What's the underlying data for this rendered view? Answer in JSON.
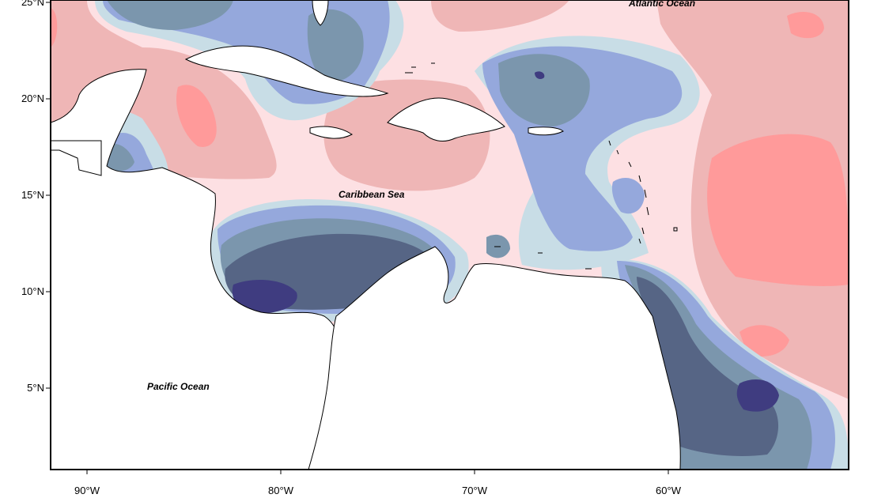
{
  "map": {
    "lat_ticks": [
      {
        "label": "25°N",
        "value": 25
      },
      {
        "label": "20°N",
        "value": 20
      },
      {
        "label": "15°N",
        "value": 15
      },
      {
        "label": "10°N",
        "value": 10
      },
      {
        "label": "5°N",
        "value": 5
      }
    ],
    "lon_ticks": [
      {
        "label": "90°W",
        "value": -90
      },
      {
        "label": "80°W",
        "value": -80
      },
      {
        "label": "70°W",
        "value": -70
      },
      {
        "label": "60°W",
        "value": -60
      }
    ],
    "labels": {
      "atlantic": "Atlantic Ocean",
      "caribbean": "Caribbean Sea",
      "pacific": "Pacific Ocean"
    },
    "colors": {
      "land": "#ffffff",
      "coast": "#000000",
      "red_strong": "#ff9a9a",
      "red_medium": "#efb6b6",
      "red_light": "#fde0e3",
      "neutral": "#ffffff",
      "blue_light": "#c8dde6",
      "blue_medium": "#95a8dc",
      "blue_steel": "#7b96ad",
      "blue_dark": "#566585",
      "blue_deep": "#3f3c80"
    }
  }
}
